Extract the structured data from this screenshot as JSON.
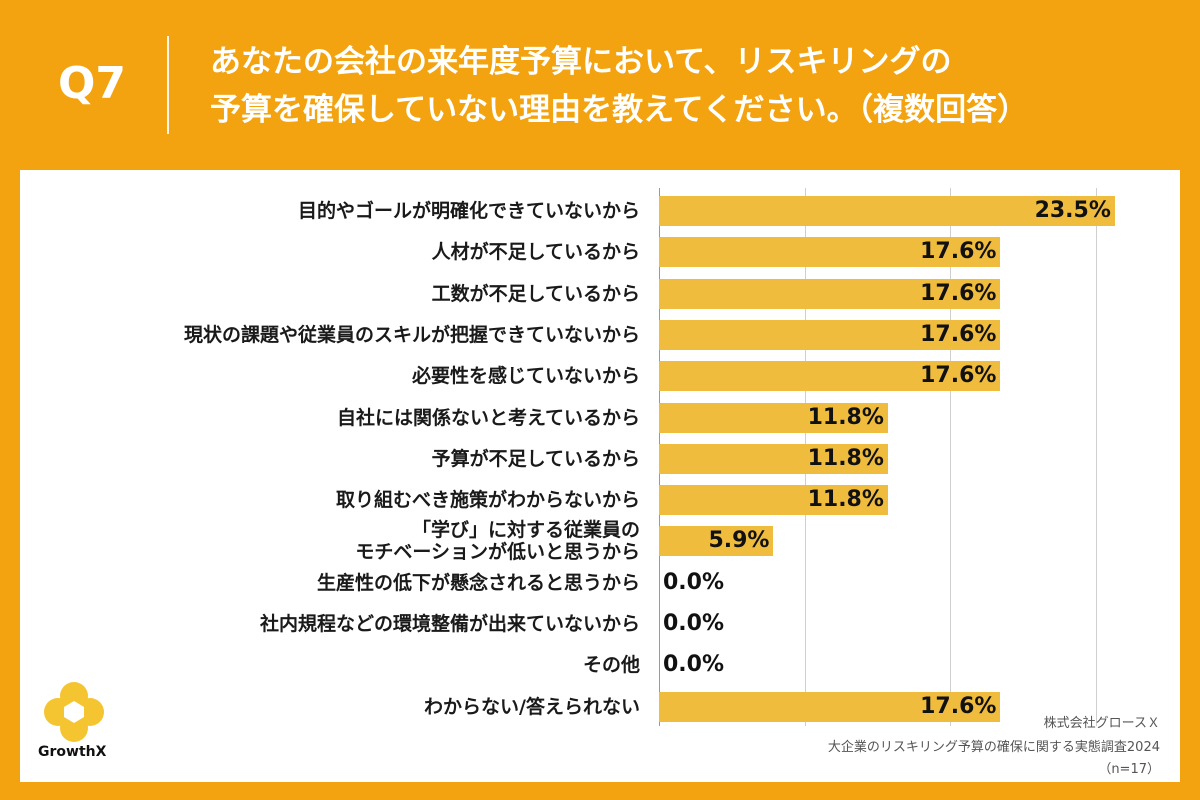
{
  "header": {
    "question_number": "Q7",
    "question_line1": "あなたの会社の来年度予算において、リスキリングの",
    "question_line2": "予算を確保していない理由を教えてください。（複数回答）"
  },
  "chart_data": {
    "type": "bar",
    "orientation": "horizontal",
    "categories": [
      "目的やゴールが明確化できていないから",
      "人材が不足しているから",
      "工数が不足しているから",
      "現状の課題や従業員のスキルが把握できていないから",
      "必要性を感じていないから",
      "自社には関係ないと考えているから",
      "予算が不足しているから",
      "取り組むべき施策がわからないから",
      "「学び」に対する従業員の\nモチベーションが低いと思うから",
      "生産性の低下が懸念されると思うから",
      "社内規程などの環境整備が出来ていないから",
      "その他",
      "わからない/答えられない"
    ],
    "values": [
      23.5,
      17.6,
      17.6,
      17.6,
      17.6,
      11.8,
      11.8,
      11.8,
      5.9,
      0.0,
      0.0,
      0.0,
      17.6
    ],
    "value_labels": [
      "23.5%",
      "17.6%",
      "17.6%",
      "17.6%",
      "17.6%",
      "11.8%",
      "11.8%",
      "11.8%",
      "5.9%",
      "0.0%",
      "0.0%",
      "0.0%",
      "17.6%"
    ],
    "xlim": [
      0,
      25
    ],
    "grid_x": [
      7.5,
      15,
      22.5
    ],
    "bar_color": "#F0BC3E"
  },
  "branding": {
    "logo_text": "GrowthX",
    "logo_color": "#F5C431"
  },
  "footer": {
    "company": "株式会社グロースＸ",
    "survey": "大企業のリスキリング予算の確保に関する実態調査2024",
    "sample": "（n=17）"
  }
}
